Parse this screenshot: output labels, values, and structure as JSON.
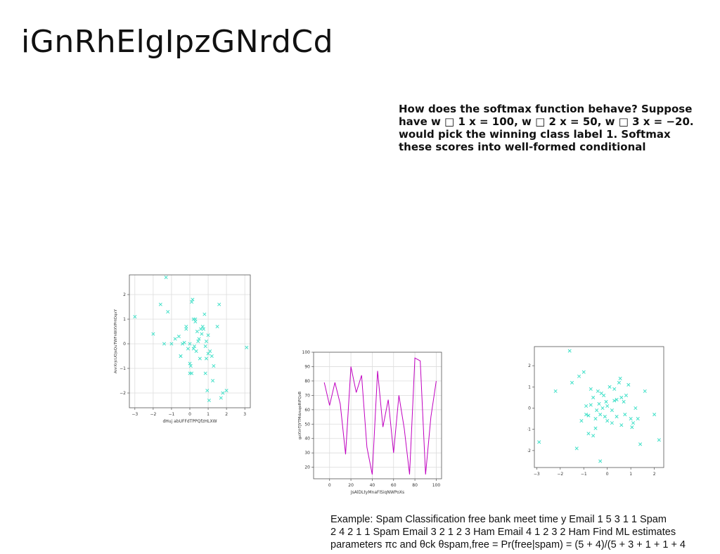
{
  "slide": {
    "title": "iGnRhElgIpzGNrdCd",
    "paragraph_lines": [
      "How does the softmax function behave? Suppose",
      "have w □ 1 x = 100, w □ 2 x = 50, w □ 3 x = −20.",
      "would pick the winning class label 1. Softmax",
      "these scores into well-formed conditional"
    ],
    "caption_lines": [
      "Example: Spam Classification free bank meet time y Email 1 5 3 1 1 Spam",
      "2 4 2 1 1 Spam Email 3 2 1 2 3 Ham Email 4 1 2 3 2 Ham Find ML estimates",
      "parameters πc and θck θspam,free = Pr(free|spam) = (5 + 4)/(5 + 3 + 1 + 1 + 4"
    ]
  },
  "chart_data": [
    {
      "type": "scatter",
      "color": "#40e0c8",
      "marker": "x",
      "xlabel": "dHuj abUFFdTPPQfzHLXW",
      "ylabel": "AnrXrjcUOjsQuTWFnWXVPrtOqxY",
      "xlim": [
        -3.3,
        3.3
      ],
      "ylim": [
        -2.6,
        2.8
      ],
      "xticks": [
        -3,
        -2,
        -1,
        0,
        1,
        2,
        3
      ],
      "yticks": [
        -2,
        -1,
        0,
        1,
        2
      ],
      "grid": true,
      "x": [
        -1.3,
        -1.6,
        -1.2,
        -3.0,
        -2.0,
        -1.4,
        -1.0,
        -0.8,
        -0.6,
        -0.5,
        -0.3,
        -0.2,
        -0.1,
        0.0,
        0.05,
        0.1,
        0.15,
        0.2,
        0.25,
        0.3,
        0.35,
        0.4,
        0.5,
        0.6,
        0.7,
        0.8,
        0.9,
        1.0,
        1.1,
        1.2,
        1.3,
        1.5,
        1.6,
        1.7,
        1.8,
        2.0,
        3.1,
        -0.4,
        -0.2,
        0.0,
        0.1,
        0.2,
        0.45,
        0.55,
        0.65,
        0.75,
        0.85,
        0.95,
        1.05,
        1.25,
        -0.5,
        0.3,
        0.9,
        1.0,
        0.85,
        0.0
      ],
      "y": [
        2.7,
        1.6,
        1.3,
        1.1,
        0.4,
        0.0,
        0.0,
        0.2,
        0.3,
        -0.5,
        0.05,
        0.7,
        -0.2,
        -1.2,
        -0.9,
        1.7,
        1.8,
        1.0,
        -0.1,
        1.0,
        -0.3,
        0.5,
        0.2,
        0.6,
        0.7,
        1.2,
        -0.6,
        -0.4,
        -0.3,
        -0.5,
        -0.9,
        0.7,
        1.6,
        -2.2,
        -2.0,
        -1.9,
        -0.15,
        0.0,
        0.6,
        -0.8,
        -1.2,
        -0.2,
        0.1,
        -0.6,
        0.4,
        0.6,
        -0.1,
        -1.9,
        -2.3,
        -1.5,
        -0.5,
        0.9,
        0.1,
        0.35,
        -1.2,
        0.0
      ]
    },
    {
      "type": "line",
      "color": "#c000c0",
      "xlabel": "JsAlDLtyMnaFlSiqNWPoXs",
      "ylabel": "gzXVrTJYTMdzsqoRiFQzB",
      "xlim": [
        -15,
        105
      ],
      "ylim": [
        12,
        100
      ],
      "xticks": [
        0,
        20,
        40,
        60,
        80,
        100
      ],
      "yticks": [
        20,
        30,
        40,
        50,
        60,
        70,
        80,
        90,
        100
      ],
      "grid": true,
      "x": [
        -5,
        0,
        5,
        10,
        15,
        20,
        25,
        30,
        35,
        40,
        45,
        50,
        55,
        60,
        65,
        70,
        75,
        80,
        85,
        90,
        95,
        100
      ],
      "y": [
        79,
        63,
        79,
        64,
        29,
        90,
        72,
        84,
        34,
        15,
        87,
        48,
        67,
        30,
        70,
        47,
        15,
        96,
        94,
        15,
        55,
        80
      ]
    },
    {
      "type": "scatter",
      "color": "#40e0c8",
      "marker": "x",
      "xlabel": "",
      "ylabel": "",
      "xlim": [
        -3.1,
        2.4
      ],
      "ylim": [
        -2.8,
        2.9
      ],
      "xticks": [
        -3,
        -2,
        -1,
        0,
        1,
        2
      ],
      "yticks": [
        -2,
        -1,
        0,
        1,
        2
      ],
      "grid": false,
      "x": [
        -1.6,
        -2.2,
        -2.9,
        -1.3,
        -1.2,
        -1.0,
        -0.9,
        -0.8,
        -0.7,
        -0.6,
        -0.5,
        -0.45,
        -0.4,
        -0.35,
        -0.3,
        -0.25,
        -0.2,
        -0.15,
        -0.1,
        -0.05,
        0.0,
        0.1,
        0.2,
        0.3,
        0.4,
        0.5,
        0.6,
        0.7,
        0.8,
        0.9,
        1.0,
        1.1,
        1.2,
        1.4,
        1.6,
        2.0,
        2.2,
        -1.5,
        -1.1,
        -0.9,
        -0.6,
        -0.3,
        0.0,
        0.3,
        0.55,
        0.75,
        1.05,
        1.3,
        -0.5,
        0.2,
        -0.8,
        -0.7,
        0.4,
        0.6
      ],
      "y": [
        2.7,
        0.8,
        -1.6,
        -1.9,
        1.5,
        1.7,
        0.1,
        -1.2,
        0.9,
        0.5,
        -0.5,
        -0.1,
        0.8,
        0.2,
        -0.3,
        0.7,
        0.0,
        0.6,
        -0.4,
        0.3,
        -0.6,
        1.0,
        -0.1,
        0.9,
        0.4,
        1.2,
        -0.8,
        0.3,
        0.6,
        1.1,
        -0.5,
        -0.7,
        0.0,
        -1.7,
        0.8,
        -0.3,
        -1.5,
        1.2,
        -0.6,
        -0.3,
        -1.3,
        -2.5,
        0.1,
        0.35,
        1.4,
        -0.3,
        -0.9,
        -0.5,
        -0.95,
        -0.7,
        -0.35,
        0.15,
        -0.4,
        0.5
      ]
    }
  ]
}
